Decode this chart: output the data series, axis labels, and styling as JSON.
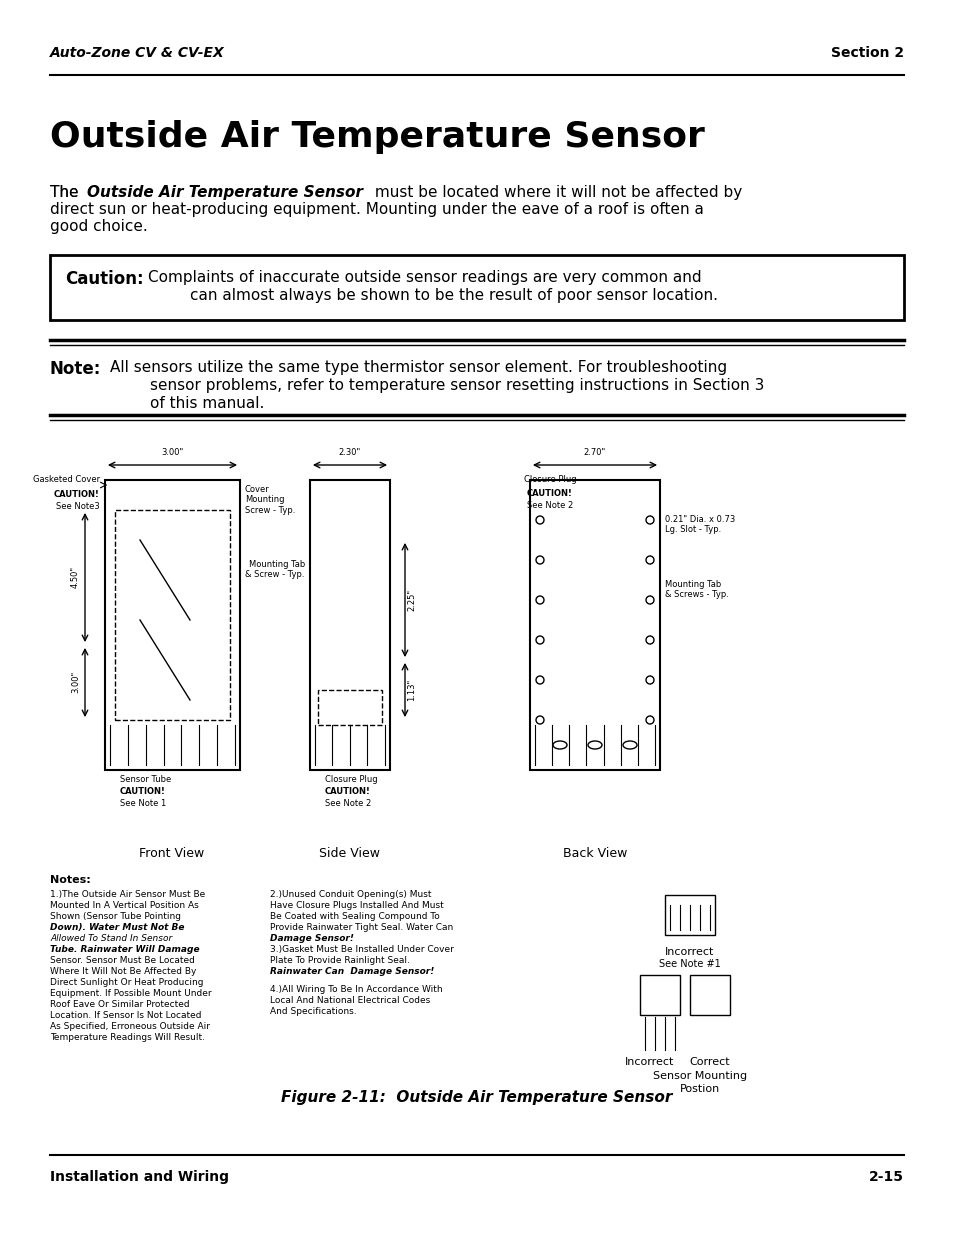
{
  "header_left": "Auto-Zone CV & CV-EX",
  "header_right": "Section 2",
  "title": "Outside Air Temperature Sensor",
  "intro_text": "The Outside Air Temperature Sensor must be located where it will not be affected by\ndirect sun or heat-producing equipment. Mounting under the eave of a roof is often a\ngood choice.",
  "caution_label": "Caution:",
  "caution_text": "Complaints of inaccurate outside sensor readings are very common and\n\t\tcan almost always be shown to be the result of poor sensor location.",
  "note_label": "Note:",
  "note_text": "All sensors utilize the same type thermistor sensor element. For troubleshooting\n\t\tsensor problems, refer to temperature sensor resetting instructions in Section 3\n\t\tof this manual.",
  "figure_caption": "Figure 2-11:  Outside Air Temperature Sensor",
  "footer_left": "Installation and Wiring",
  "footer_right": "2-15",
  "bg_color": "#ffffff",
  "text_color": "#000000"
}
